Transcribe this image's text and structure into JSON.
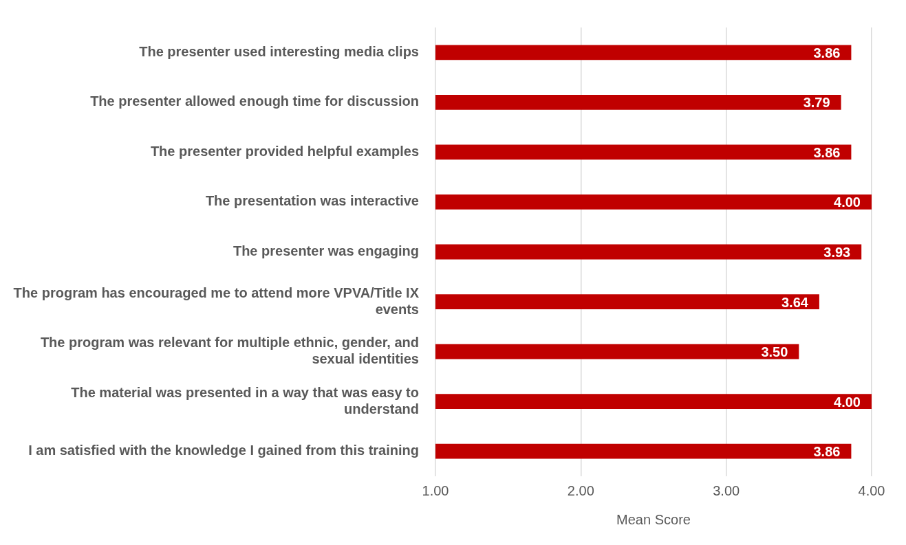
{
  "chart_data": {
    "type": "bar",
    "orientation": "horizontal",
    "xlabel": "Mean Score",
    "categories": [
      "The presenter used interesting media clips",
      "The presenter allowed enough time for discussion",
      "The presenter provided helpful examples",
      "The presentation was interactive",
      "The presenter was engaging",
      "The program has encouraged me to attend more VPVA/Title IX events",
      "The program was relevant for multiple ethnic, gender, and sexual identities",
      "The material was presented in a way that was easy to understand",
      "I am satisfied with the knowledge I gained from this training"
    ],
    "values": [
      3.86,
      3.79,
      3.86,
      4.0,
      3.93,
      3.64,
      3.5,
      4.0,
      3.86
    ],
    "value_labels": [
      "3.86",
      "3.79",
      "3.86",
      "4.00",
      "3.93",
      "3.64",
      "3.50",
      "4.00",
      "3.86"
    ],
    "color": "#c00000",
    "xlim": [
      1,
      4
    ],
    "xticks": [
      {
        "value": 1,
        "label": "1.00"
      },
      {
        "value": 2,
        "label": "2.00"
      },
      {
        "value": 3,
        "label": "3.00"
      },
      {
        "value": 4,
        "label": "4.00"
      }
    ],
    "grid": "x",
    "legend": false
  }
}
